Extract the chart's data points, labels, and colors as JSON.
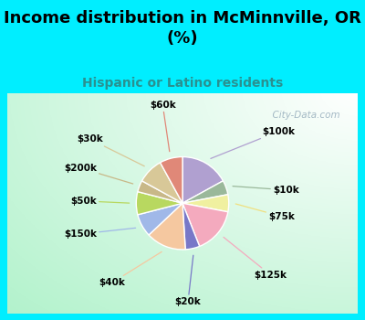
{
  "title": "Income distribution in McMinnville, OR\n(%)",
  "subtitle": "Hispanic or Latino residents",
  "labels": [
    "$100k",
    "$10k",
    "$75k",
    "$125k",
    "$20k",
    "$40k",
    "$150k",
    "$50k",
    "$200k",
    "$30k",
    "$60k"
  ],
  "values": [
    17,
    5,
    6,
    16,
    5,
    14,
    8,
    8,
    4,
    9,
    8
  ],
  "colors": [
    "#b0a0d0",
    "#9ab89a",
    "#f0f0a0",
    "#f4aabe",
    "#7878c8",
    "#f5c8a0",
    "#a0b8e8",
    "#b8d860",
    "#c8b888",
    "#d8c898",
    "#e08878"
  ],
  "bg_color": "#00eeff",
  "chart_bg": "#ffffff",
  "title_fontsize": 13,
  "subtitle_fontsize": 10,
  "subtitle_color": "#2a9090",
  "watermark": "  City-Data.com"
}
